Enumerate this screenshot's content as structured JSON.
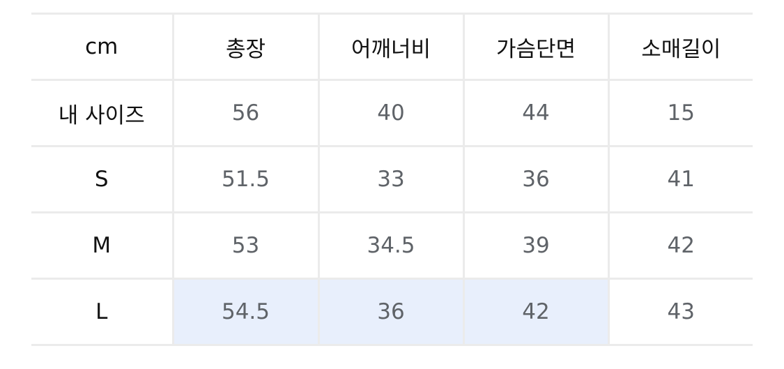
{
  "table": {
    "headers": [
      "cm",
      "총장",
      "어깨너비",
      "가슴단면",
      "소매길이"
    ],
    "rows": [
      {
        "label": "내 사이즈",
        "values": [
          "56",
          "40",
          "44",
          "15"
        ]
      },
      {
        "label": "S",
        "values": [
          "51.5",
          "33",
          "36",
          "41"
        ]
      },
      {
        "label": "M",
        "values": [
          "53",
          "34.5",
          "39",
          "42"
        ]
      },
      {
        "label": "L",
        "values": [
          "54.5",
          "36",
          "42",
          "43"
        ],
        "highlighted_columns": [
          0,
          1,
          2
        ]
      }
    ]
  },
  "colors": {
    "highlight": "#e8effc",
    "border": "#ebebeb"
  }
}
